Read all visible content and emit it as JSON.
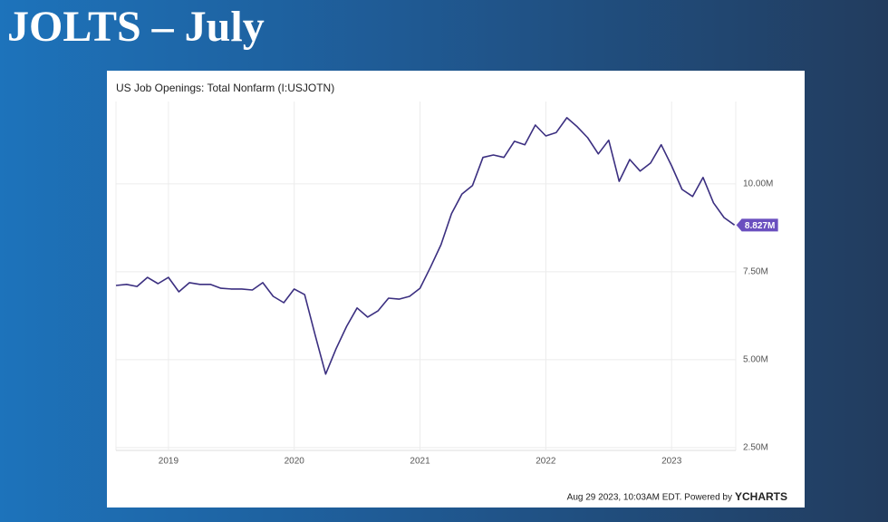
{
  "slide_title": "JOLTS – July",
  "chart_data": {
    "type": "line",
    "title": "US Job Openings: Total Nonfarm (I:USJOTN)",
    "footer": "Aug 29 2023, 10:03AM EDT. Powered by",
    "brand": "YCHARTS",
    "x": [
      2018.583,
      2018.667,
      2018.75,
      2018.833,
      2018.917,
      2019,
      2019.083,
      2019.167,
      2019.25,
      2019.333,
      2019.417,
      2019.5,
      2019.583,
      2019.667,
      2019.75,
      2019.833,
      2019.917,
      2020,
      2020.083,
      2020.167,
      2020.25,
      2020.333,
      2020.417,
      2020.5,
      2020.583,
      2020.667,
      2020.75,
      2020.833,
      2020.917,
      2021,
      2021.083,
      2021.167,
      2021.25,
      2021.333,
      2021.417,
      2021.5,
      2021.583,
      2021.667,
      2021.75,
      2021.833,
      2021.917,
      2022,
      2022.083,
      2022.167,
      2022.25,
      2022.333,
      2022.417,
      2022.5,
      2022.583,
      2022.667,
      2022.75,
      2022.833,
      2022.917,
      2023,
      2023.083,
      2023.167,
      2023.25,
      2023.333,
      2023.417,
      2023.5
    ],
    "series": [
      {
        "name": "US Job Openings: Total Nonfarm",
        "color": "#3b2f80",
        "values": [
          7.11,
          7.14,
          7.08,
          7.34,
          7.16,
          7.34,
          6.93,
          7.19,
          7.14,
          7.14,
          7.03,
          7.01,
          7.01,
          6.98,
          7.19,
          6.8,
          6.62,
          7.01,
          6.85,
          5.69,
          4.59,
          5.31,
          5.95,
          6.47,
          6.21,
          6.39,
          6.75,
          6.72,
          6.8,
          7.03,
          7.63,
          8.27,
          9.15,
          9.71,
          9.95,
          10.75,
          10.82,
          10.75,
          11.21,
          11.11,
          11.67,
          11.36,
          11.46,
          11.88,
          11.62,
          11.31,
          10.85,
          11.24,
          10.07,
          10.69,
          10.36,
          10.59,
          11.11,
          10.51,
          9.84,
          9.64,
          10.18,
          9.46,
          9.04,
          8.827
        ],
        "value_labels": [
          null,
          null,
          null,
          null,
          null,
          null,
          null,
          null,
          null,
          null,
          null,
          null,
          null,
          null,
          null,
          null,
          null,
          null,
          null,
          null,
          null,
          null,
          null,
          null,
          null,
          null,
          null,
          null,
          null,
          null,
          null,
          null,
          null,
          null,
          null,
          null,
          null,
          null,
          null,
          null,
          null,
          null,
          null,
          null,
          null,
          null,
          null,
          null,
          null,
          null,
          null,
          null,
          null,
          null,
          null,
          null,
          null,
          null,
          null,
          "8.827M"
        ]
      }
    ],
    "xlim": [
      2018.583,
      2023.51
    ],
    "xticks": [
      2019,
      2020,
      2021,
      2022,
      2023
    ],
    "ylim": [
      2.42,
      12.34
    ],
    "yticks": [
      {
        "value": 2.5,
        "label": "2.50M"
      },
      {
        "value": 5,
        "label": "5.00M"
      },
      {
        "value": 7.5,
        "label": "7.50M"
      },
      {
        "value": 10,
        "label": "10.00M"
      }
    ],
    "grid": true
  }
}
